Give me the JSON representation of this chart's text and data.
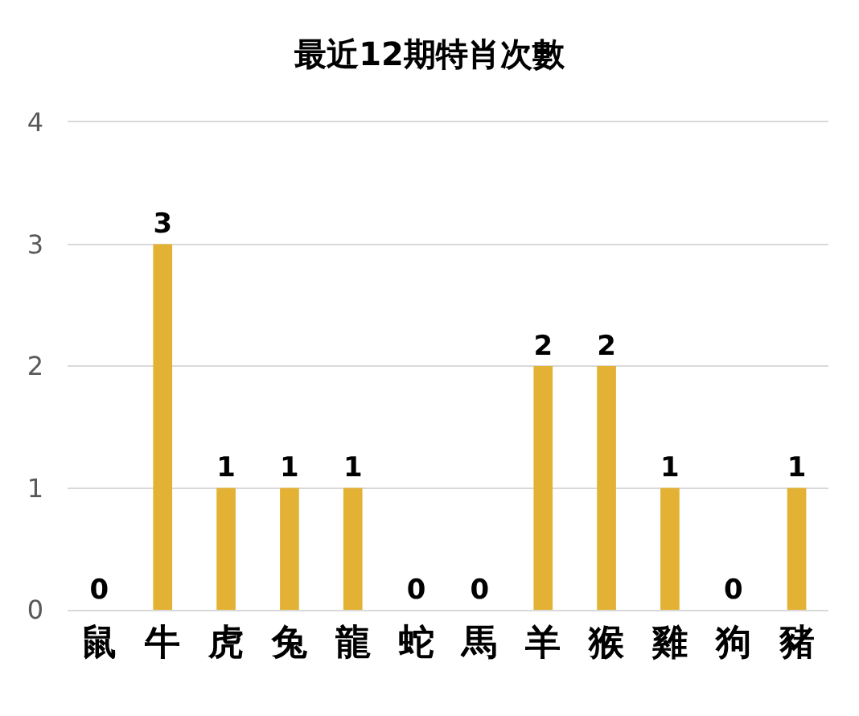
{
  "chart_data": {
    "type": "bar",
    "title": "最近12期特肖次數",
    "categories": [
      "鼠",
      "牛",
      "虎",
      "兔",
      "龍",
      "蛇",
      "馬",
      "羊",
      "猴",
      "雞",
      "狗",
      "豬"
    ],
    "values": [
      0,
      3,
      1,
      1,
      1,
      0,
      0,
      2,
      2,
      1,
      0,
      1
    ],
    "color": "#e3b133",
    "ylim": [
      0,
      4
    ],
    "yticks": [
      0,
      1,
      2,
      3,
      4
    ],
    "grid": "y",
    "data_labels": true
  }
}
